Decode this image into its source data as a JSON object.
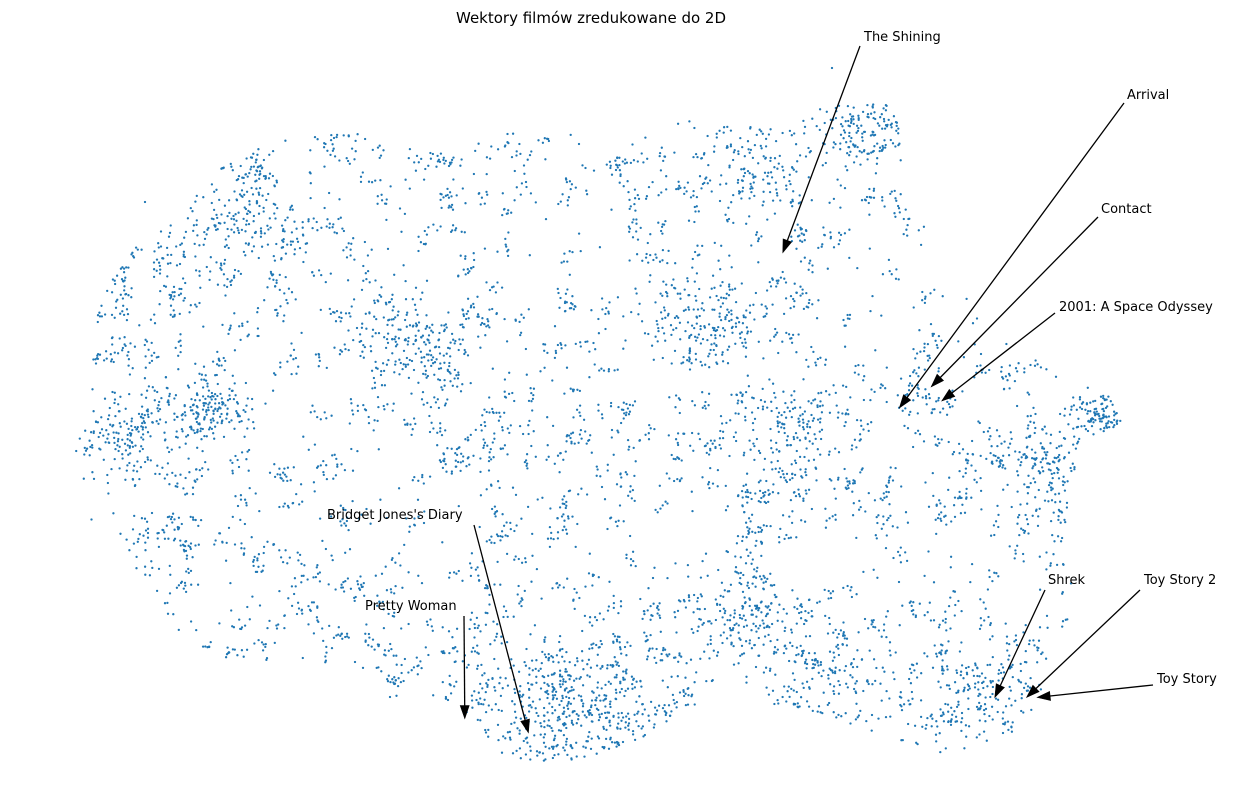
{
  "chart_data": {
    "type": "scatter",
    "title": "Wektory filmów zredukowane do 2D",
    "xlabel": "",
    "ylabel": "",
    "axes_visible": false,
    "grid": false,
    "point_color": "#1f77b4",
    "point_count_approx": 6000,
    "x_range": [
      0,
      1
    ],
    "y_range": [
      0,
      1
    ],
    "annotations": [
      {
        "label": "The Shining",
        "point": [
          0.68,
          0.73
        ]
      },
      {
        "label": "Arrival",
        "point": [
          0.79,
          0.51
        ]
      },
      {
        "label": "Contact",
        "point": [
          0.82,
          0.54
        ]
      },
      {
        "label": "2001: A Space Odyssey",
        "point": [
          0.83,
          0.52
        ]
      },
      {
        "label": "Bridget Jones's Diary",
        "point": [
          0.44,
          0.05
        ]
      },
      {
        "label": "Pretty Woman",
        "point": [
          0.38,
          0.07
        ]
      },
      {
        "label": "Shrek",
        "point": [
          0.88,
          0.1
        ]
      },
      {
        "label": "Toy Story 2",
        "point": [
          0.91,
          0.1
        ]
      },
      {
        "label": "Toy Story",
        "point": [
          0.92,
          0.1
        ]
      }
    ]
  }
}
